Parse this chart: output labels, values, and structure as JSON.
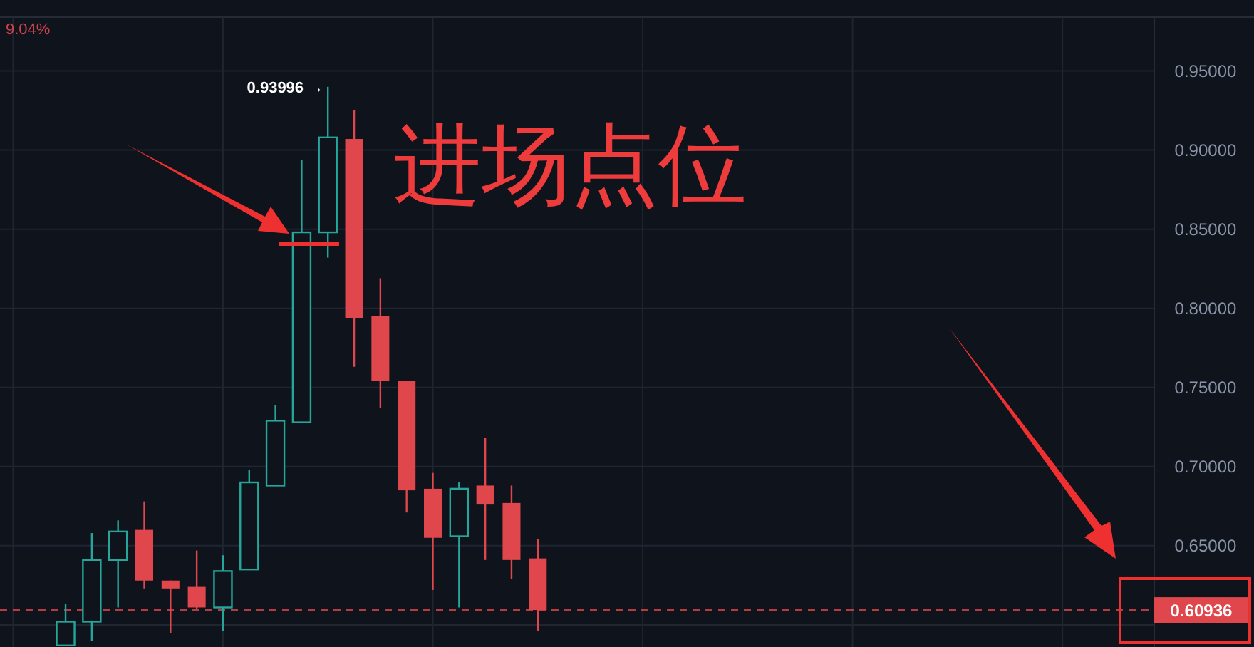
{
  "chart_data": {
    "type": "candlestick",
    "categories": [
      null,
      null,
      null,
      null,
      null,
      null,
      null,
      null,
      null,
      null,
      null,
      null,
      null,
      null,
      null,
      null,
      null,
      null,
      null,
      null,
      null,
      null,
      null,
      null,
      null,
      null,
      null,
      null,
      null,
      null,
      null,
      null,
      null,
      null,
      null,
      null,
      null,
      null,
      null,
      null,
      null,
      null,
      null,
      null
    ],
    "ohlc": [
      null,
      null,
      [
        0.587,
        0.613,
        0.587,
        0.602
      ],
      [
        0.602,
        0.658,
        0.59,
        0.641
      ],
      [
        0.641,
        0.666,
        0.611,
        0.659
      ],
      [
        0.66,
        0.678,
        0.623,
        0.628
      ],
      [
        0.628,
        0.628,
        0.595,
        0.623
      ],
      [
        0.624,
        0.647,
        0.61,
        0.611
      ],
      [
        0.611,
        0.644,
        0.596,
        0.634
      ],
      [
        0.635,
        0.698,
        0.635,
        0.69
      ],
      [
        0.688,
        0.739,
        0.688,
        0.729
      ],
      [
        0.728,
        0.894,
        0.728,
        0.848
      ],
      [
        0.848,
        0.93996,
        0.832,
        0.908
      ],
      [
        0.907,
        0.925,
        0.763,
        0.794
      ],
      [
        0.795,
        0.819,
        0.737,
        0.754
      ],
      [
        0.754,
        0.754,
        0.671,
        0.685
      ],
      [
        0.686,
        0.696,
        0.622,
        0.655
      ],
      [
        0.656,
        0.69,
        0.611,
        0.686
      ],
      [
        0.688,
        0.718,
        0.641,
        0.676
      ],
      [
        0.677,
        0.688,
        0.629,
        0.641
      ],
      [
        0.642,
        0.654,
        0.596,
        0.60936
      ],
      null,
      null,
      null,
      null,
      null,
      null,
      null,
      null,
      null,
      null,
      null,
      null,
      null,
      null,
      null,
      null,
      null,
      null,
      null,
      null,
      null,
      null,
      null
    ],
    "colors": [
      null,
      null,
      "#26a69a",
      "#26a69a",
      "#26a69a",
      "#e0474c",
      "#e0474c",
      "#e0474c",
      "#26a69a",
      "#26a69a",
      "#26a69a",
      "#26a69a",
      "#26a69a",
      "#e0474c",
      "#e0474c",
      "#e0474c",
      "#e0474c",
      "#26a69a",
      "#e0474c",
      "#e0474c",
      "#e0474c",
      null,
      null,
      null,
      null,
      null,
      null,
      null,
      null,
      null,
      null,
      null,
      null,
      null,
      null,
      null,
      null,
      null,
      null,
      null,
      null,
      null,
      null,
      null
    ],
    "ylim": [
      0.586,
      0.984
    ],
    "yticks": [
      {
        "value": 0.6,
        "label": null
      },
      {
        "value": 0.65,
        "label": "0.65000"
      },
      {
        "value": 0.7,
        "label": "0.70000"
      },
      {
        "value": 0.75,
        "label": "0.75000"
      },
      {
        "value": 0.8,
        "label": "0.80000"
      },
      {
        "value": 0.85,
        "label": "0.85000"
      },
      {
        "value": 0.9,
        "label": "0.90000"
      },
      {
        "value": 0.95,
        "label": "0.95000"
      }
    ],
    "tick_labels": "y",
    "grid": true,
    "ref_lines": [
      {
        "axis": "y",
        "value": 0.60936,
        "label": "0.60936",
        "color": "#e0474c",
        "line_style": "dashed"
      }
    ],
    "annotations": [
      "9.04%",
      "0.93996 →",
      "进场点位"
    ]
  }
}
